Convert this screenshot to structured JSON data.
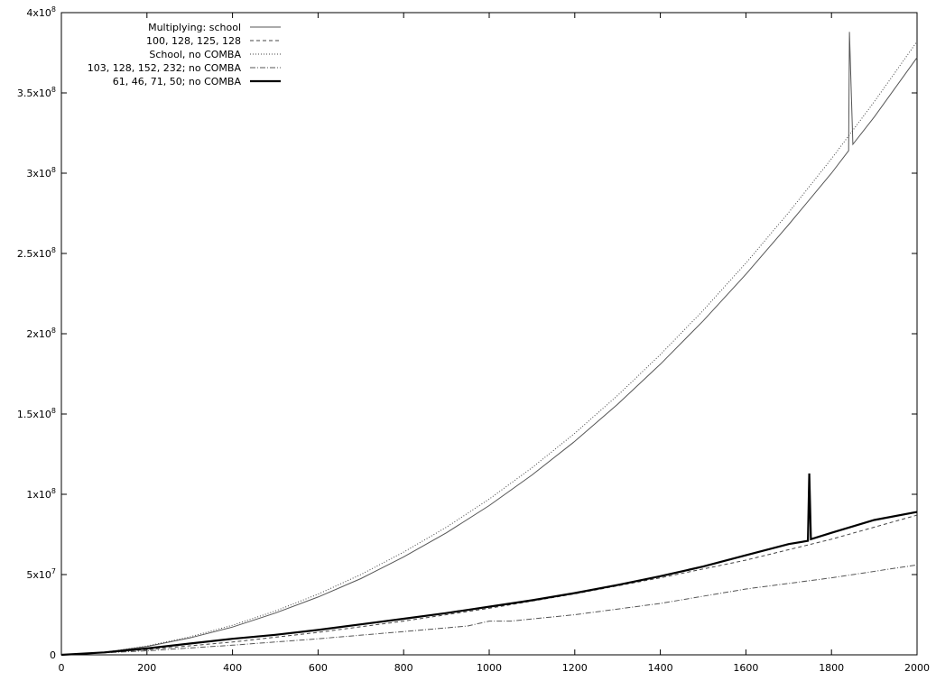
{
  "chart_data": {
    "type": "line",
    "title": "",
    "xlabel": "",
    "ylabel": "",
    "xlim": [
      0,
      2000
    ],
    "ylim": [
      0,
      400000000
    ],
    "x_ticks": [
      0,
      200,
      400,
      600,
      800,
      1000,
      1200,
      1400,
      1600,
      1800,
      2000
    ],
    "x_tick_labels": [
      "0",
      "200",
      "400",
      "600",
      "800",
      "1000",
      "1200",
      "1400",
      "1600",
      "1800",
      "2000"
    ],
    "y_ticks": [
      0,
      50000000,
      100000000,
      150000000,
      200000000,
      250000000,
      300000000,
      350000000,
      400000000
    ],
    "y_tick_labels": [
      {
        "mant": "0",
        "exp": ""
      },
      {
        "mant": "5x10",
        "exp": "7"
      },
      {
        "mant": "1x10",
        "exp": "8"
      },
      {
        "mant": "1.5x10",
        "exp": "8"
      },
      {
        "mant": "2x10",
        "exp": "8"
      },
      {
        "mant": "2.5x10",
        "exp": "8"
      },
      {
        "mant": "3x10",
        "exp": "8"
      },
      {
        "mant": "3.5x10",
        "exp": "8"
      },
      {
        "mant": "4x10",
        "exp": "8"
      }
    ],
    "grid": false,
    "legend_position": "top-left",
    "series": [
      {
        "name": "Multiplying: school",
        "style": "solid-thin",
        "x": [
          0,
          100,
          200,
          300,
          400,
          500,
          600,
          700,
          800,
          900,
          1000,
          1100,
          1200,
          1300,
          1400,
          1500,
          1600,
          1700,
          1800,
          1840,
          1842,
          1850,
          1900,
          2000
        ],
        "y": [
          0,
          1500000,
          5200000,
          10500000,
          17300000,
          26000000,
          36000000,
          47500000,
          61000000,
          76000000,
          93000000,
          112000000,
          133000000,
          156000000,
          181000000,
          208000000,
          237000000,
          268000000,
          300000000,
          314000000,
          388000000,
          318000000,
          335000000,
          372000000
        ]
      },
      {
        "name": "100, 128, 125, 128",
        "style": "dashed",
        "x": [
          0,
          200,
          400,
          600,
          800,
          1000,
          1200,
          1400,
          1600,
          1800,
          2000
        ],
        "y": [
          0,
          3200000,
          8000000,
          14000000,
          21000000,
          29000000,
          38000000,
          48000000,
          59000000,
          72000000,
          87000000
        ]
      },
      {
        "name": "School, no COMBA",
        "style": "dotted",
        "x": [
          0,
          100,
          200,
          300,
          400,
          500,
          600,
          700,
          800,
          900,
          1000,
          1100,
          1200,
          1300,
          1400,
          1500,
          1600,
          1700,
          1800,
          1900,
          2000
        ],
        "y": [
          0,
          1600000,
          5500000,
          11200000,
          18400000,
          27300000,
          37800000,
          50000000,
          64000000,
          79500000,
          97000000,
          116500000,
          138000000,
          161500000,
          187000000,
          214500000,
          244000000,
          275500000,
          309000000,
          344500000,
          382000000
        ]
      },
      {
        "name": "103, 128, 152, 232; no COMBA",
        "style": "dash-dot",
        "x": [
          0,
          200,
          400,
          600,
          800,
          950,
          1000,
          1050,
          1200,
          1400,
          1600,
          1800,
          2000
        ],
        "y": [
          0,
          2500000,
          6000000,
          10000000,
          14500000,
          18000000,
          21000000,
          21000000,
          25000000,
          32000000,
          41000000,
          48000000,
          56000000
        ]
      },
      {
        "name": "61, 46, 71, 50; no COMBA",
        "style": "solid-thick",
        "x": [
          0,
          100,
          200,
          300,
          400,
          500,
          600,
          700,
          800,
          900,
          1000,
          1100,
          1200,
          1300,
          1400,
          1500,
          1600,
          1700,
          1745,
          1748,
          1752,
          1800,
          1900,
          2000
        ],
        "y": [
          0,
          1500000,
          4000000,
          7000000,
          10000000,
          12500000,
          15500000,
          19000000,
          22500000,
          26000000,
          30000000,
          34000000,
          38500000,
          43500000,
          49000000,
          55000000,
          62000000,
          69000000,
          71000000,
          113000000,
          72000000,
          76000000,
          84000000,
          89000000
        ]
      }
    ]
  }
}
